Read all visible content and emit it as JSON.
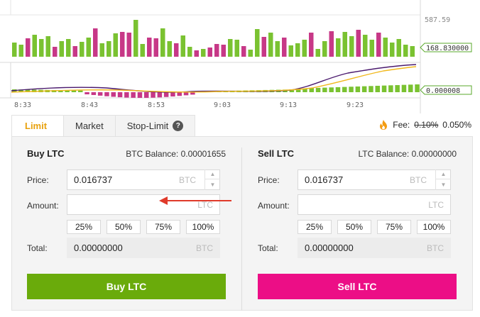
{
  "colors": {
    "volume_up": "#7ac231",
    "volume_down": "#c73887",
    "buy": "#6aab0b",
    "sell": "#ec0e86",
    "tab_active": "#e8a10d",
    "fee_icon": "#f39c12"
  },
  "chart": {
    "price_tag": "587.59",
    "volume_tag": "168.830000",
    "macd_tag": "0.000008",
    "time_labels": [
      "8:33",
      "8:43",
      "8:53",
      "9:03",
      "9:13",
      "9:23"
    ]
  },
  "tabs": [
    {
      "label": "Limit",
      "active": true
    },
    {
      "label": "Market",
      "active": false
    },
    {
      "label": "Stop-Limit",
      "active": false,
      "help_icon": "question-icon"
    }
  ],
  "fee": {
    "icon": "fire-icon",
    "label": "Fee:",
    "old": "0.10%",
    "new": "0.050%"
  },
  "buy": {
    "title": "Buy LTC",
    "balance": "BTC Balance: 0.00001655",
    "price_label": "Price:",
    "price_value": "0.016737",
    "price_unit": "BTC",
    "amount_label": "Amount:",
    "amount_value": "",
    "amount_unit": "LTC",
    "percents": [
      "25%",
      "50%",
      "75%",
      "100%"
    ],
    "total_label": "Total:",
    "total_value": "0.00000000",
    "total_unit": "BTC",
    "button": "Buy LTC"
  },
  "sell": {
    "title": "Sell LTC",
    "balance": "LTC Balance: 0.00000000",
    "price_label": "Price:",
    "price_value": "0.016737",
    "price_unit": "BTC",
    "amount_label": "Amount:",
    "amount_value": "",
    "amount_unit": "LTC",
    "percents": [
      "25%",
      "50%",
      "75%",
      "100%"
    ],
    "total_label": "Total:",
    "total_value": "0.00000000",
    "total_unit": "BTC",
    "button": "Sell LTC"
  }
}
